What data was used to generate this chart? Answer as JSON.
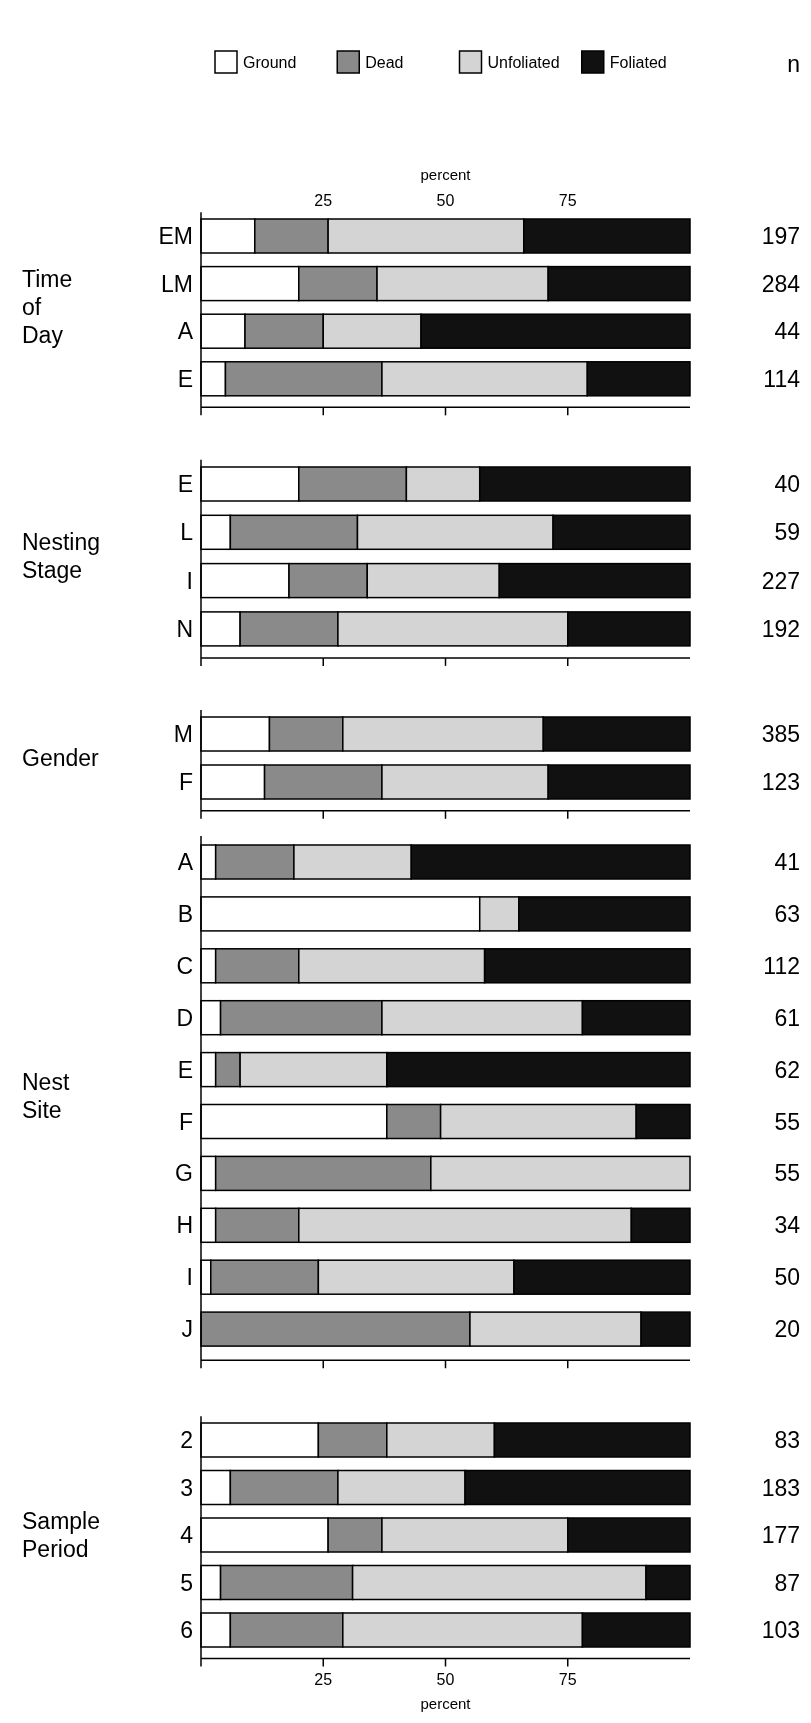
{
  "chart_data": [
    {
      "type": "bar",
      "orientation": "horizontal",
      "stacked": true,
      "ylabel": "Time of Day",
      "legend": "top",
      "categories": [
        "EM",
        "LM",
        "A",
        "E"
      ],
      "xlim": [
        0,
        100
      ],
      "xticks": [
        25,
        50,
        75
      ],
      "tick_labels": "y",
      "x2lim": [
        0,
        100
      ],
      "x2ticks": [
        25,
        50,
        75
      ],
      "x2label": "percent",
      "series": [
        {
          "name": "Ground",
          "color": "#ffffff",
          "values": [
            11,
            20,
            9,
            5
          ]
        },
        {
          "name": "Dead",
          "color": "#8a8a8a",
          "values": [
            15,
            16,
            16,
            32
          ]
        },
        {
          "name": "Unfoliated",
          "color": "#d4d4d4",
          "values": [
            40,
            35,
            20,
            42
          ]
        },
        {
          "name": "Foliated",
          "color": "#111111",
          "values": [
            34,
            29,
            55,
            21
          ]
        }
      ],
      "annotations": [
        "n",
        "197",
        "284",
        "44",
        "114"
      ]
    },
    {
      "type": "bar",
      "orientation": "horizontal",
      "stacked": true,
      "ylabel": "Nesting Stage",
      "categories": [
        "E",
        "L",
        "I",
        "N"
      ],
      "xlim": [
        0,
        100
      ],
      "xticks": [
        25,
        50,
        75
      ],
      "tick_labels": "y",
      "series": [
        {
          "color": "#ffffff",
          "values": [
            20,
            6,
            18,
            8
          ]
        },
        {
          "color": "#8a8a8a",
          "values": [
            22,
            26,
            16,
            20
          ]
        },
        {
          "color": "#d4d4d4",
          "values": [
            15,
            40,
            27,
            47
          ]
        },
        {
          "color": "#111111",
          "values": [
            43,
            28,
            39,
            25
          ]
        }
      ],
      "annotations": [
        "40",
        "59",
        "227",
        "192"
      ]
    },
    {
      "type": "bar",
      "orientation": "horizontal",
      "stacked": true,
      "ylabel": "Gender",
      "categories": [
        "M",
        "F"
      ],
      "xlim": [
        0,
        100
      ],
      "xticks": [
        25,
        50,
        75
      ],
      "tick_labels": "y",
      "series": [
        {
          "color": "#ffffff",
          "values": [
            14,
            13
          ]
        },
        {
          "color": "#8a8a8a",
          "values": [
            15,
            24
          ]
        },
        {
          "color": "#d4d4d4",
          "values": [
            41,
            34
          ]
        },
        {
          "color": "#111111",
          "values": [
            30,
            29
          ]
        }
      ],
      "annotations": [
        "385",
        "123"
      ]
    },
    {
      "type": "bar",
      "orientation": "horizontal",
      "stacked": true,
      "ylabel": "Nest Site",
      "categories": [
        "A",
        "B",
        "C",
        "D",
        "E",
        "F",
        "G",
        "H",
        "I",
        "J"
      ],
      "xlim": [
        0,
        100
      ],
      "xticks": [
        25,
        50,
        75
      ],
      "tick_labels": "y",
      "series": [
        {
          "color": "#ffffff",
          "values": [
            3,
            57,
            3,
            4,
            3,
            38,
            3,
            3,
            2,
            0
          ]
        },
        {
          "color": "#8a8a8a",
          "values": [
            16,
            0,
            17,
            33,
            5,
            11,
            44,
            17,
            22,
            55
          ]
        },
        {
          "color": "#d4d4d4",
          "values": [
            24,
            8,
            38,
            41,
            30,
            40,
            53,
            68,
            40,
            35
          ]
        },
        {
          "color": "#111111",
          "values": [
            57,
            35,
            42,
            22,
            62,
            11,
            0,
            12,
            36,
            10
          ]
        }
      ],
      "annotations": [
        "41",
        "63",
        "112",
        "61",
        "62",
        "55",
        "55",
        "34",
        "50",
        "20"
      ]
    },
    {
      "type": "bar",
      "orientation": "horizontal",
      "stacked": true,
      "ylabel": "Sample Period",
      "categories": [
        "2",
        "3",
        "4",
        "5",
        "6"
      ],
      "xlim": [
        0,
        100
      ],
      "xticks": [
        25,
        50,
        75
      ],
      "xlabel": "percent",
      "series": [
        {
          "color": "#ffffff",
          "values": [
            24,
            6,
            26,
            4,
            6
          ]
        },
        {
          "color": "#8a8a8a",
          "values": [
            14,
            22,
            11,
            27,
            23
          ]
        },
        {
          "color": "#d4d4d4",
          "values": [
            22,
            26,
            38,
            60,
            49
          ]
        },
        {
          "color": "#111111",
          "values": [
            40,
            46,
            25,
            9,
            22
          ]
        }
      ],
      "annotations": [
        "83",
        "183",
        "177",
        "87",
        "103"
      ]
    }
  ]
}
